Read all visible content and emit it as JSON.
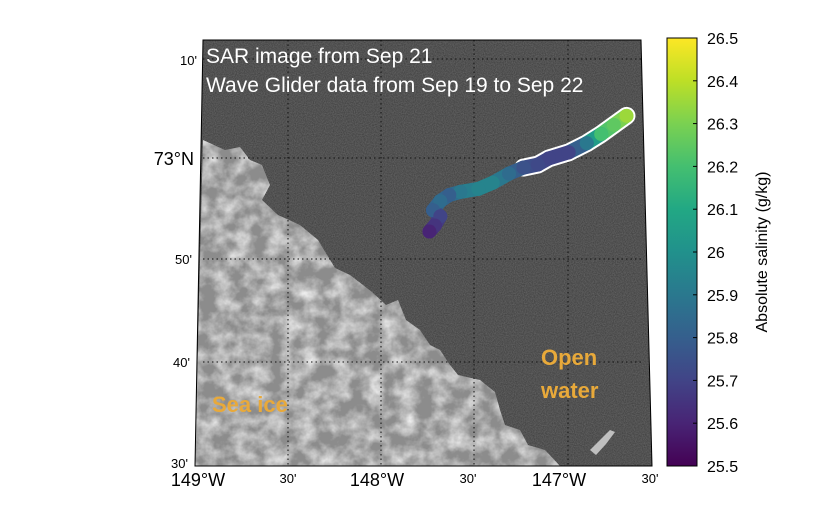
{
  "chart_data": {
    "type": "map",
    "title_lines": [
      "SAR image from Sep 21",
      "Wave Glider data from Sep 19 to Sep 22"
    ],
    "region_labels": [
      {
        "text": "Sea ice",
        "lines": [
          "Sea ice"
        ],
        "color": "#e8a93a"
      },
      {
        "text": "Open water",
        "lines": [
          "Open",
          "water"
        ],
        "color": "#e8a93a"
      }
    ],
    "x_ticks": [
      "149°W",
      "30'",
      "148°W",
      "30'",
      "147°W",
      "30'"
    ],
    "y_ticks": [
      "30'",
      "40'",
      "50'",
      "73°N",
      "10'"
    ],
    "colorbar": {
      "label": "Absolute salinity (g/kg)",
      "min": 25.5,
      "max": 26.5,
      "ticks": [
        "25.5",
        "25.6",
        "25.7",
        "25.8",
        "25.9",
        "26",
        "26.1",
        "26.2",
        "26.3",
        "26.4",
        "26.5"
      ],
      "colormap": "viridis"
    },
    "track": {
      "name": "Wave Glider",
      "points": [
        {
          "lon": -146.63,
          "lat": 73.075,
          "salinity": 26.35
        },
        {
          "lon": -146.7,
          "lat": 73.06,
          "salinity": 26.25
        },
        {
          "lon": -146.77,
          "lat": 73.045,
          "salinity": 26.2
        },
        {
          "lon": -146.85,
          "lat": 73.03,
          "salinity": 25.9
        },
        {
          "lon": -146.95,
          "lat": 73.015,
          "salinity": 25.7
        },
        {
          "lon": -147.06,
          "lat": 73.005,
          "salinity": 25.7
        },
        {
          "lon": -147.12,
          "lat": 72.995,
          "salinity": 25.72
        },
        {
          "lon": -147.2,
          "lat": 72.99,
          "salinity": 25.75
        },
        {
          "lon": -147.28,
          "lat": 72.98,
          "salinity": 25.85
        },
        {
          "lon": -147.37,
          "lat": 72.965,
          "salinity": 25.95
        },
        {
          "lon": -147.45,
          "lat": 72.955,
          "salinity": 25.95
        },
        {
          "lon": -147.55,
          "lat": 72.95,
          "salinity": 25.9
        },
        {
          "lon": -147.61,
          "lat": 72.945,
          "salinity": 25.8
        },
        {
          "lon": -147.66,
          "lat": 72.935,
          "salinity": 25.85
        },
        {
          "lon": -147.7,
          "lat": 72.92,
          "salinity": 25.8
        },
        {
          "lon": -147.66,
          "lat": 72.91,
          "salinity": 25.7
        },
        {
          "lon": -147.69,
          "lat": 72.895,
          "salinity": 25.65
        },
        {
          "lon": -147.72,
          "lat": 72.885,
          "salinity": 25.6
        }
      ]
    }
  }
}
